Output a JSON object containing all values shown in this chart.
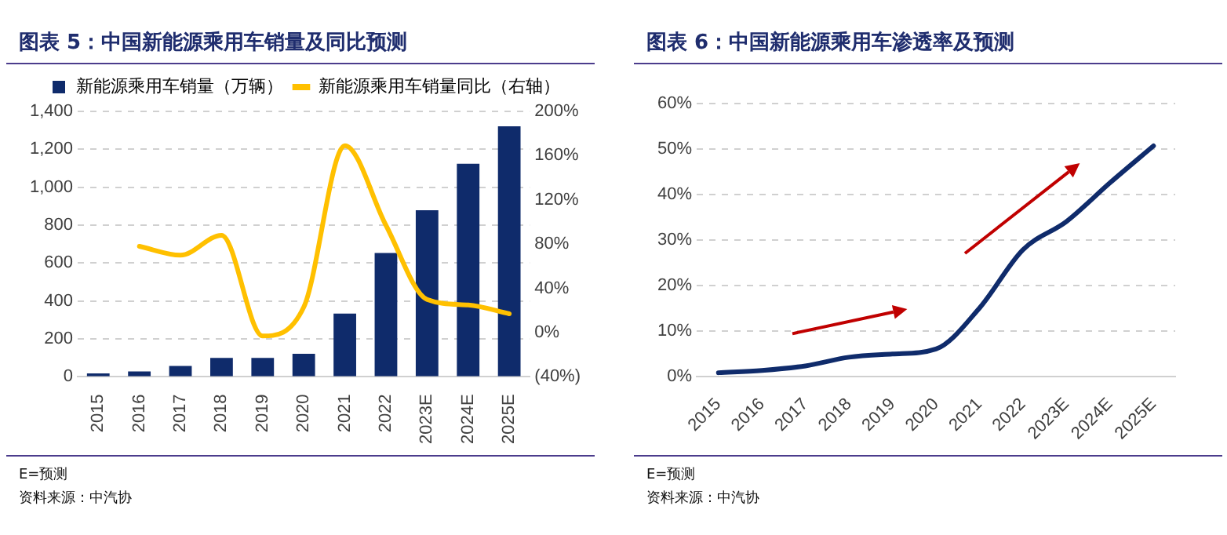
{
  "chart_data": [
    {
      "type": "bar",
      "title": "图表 5：中国新能源乘用车销量及同比预测",
      "categories": [
        "2015",
        "2016",
        "2017",
        "2018",
        "2019",
        "2020",
        "2021",
        "2022",
        "2023E",
        "2024E",
        "2025E"
      ],
      "series": [
        {
          "name": "新能源乘用车销量（万辆）",
          "color": "#0f2b6b",
          "values": [
            18,
            29,
            57,
            100,
            100,
            122,
            334,
            653,
            879,
            1124,
            1321
          ]
        },
        {
          "name": "新能源乘用车销量同比（右轴）",
          "type": "line",
          "axis": "y2",
          "color": "#ffc000",
          "values": [
            null,
            78,
            70,
            88,
            -3,
            23,
            169,
            97,
            30,
            25,
            17
          ]
        }
      ],
      "ylim": [
        0,
        1400
      ],
      "yticks": [
        {
          "value": 0,
          "label": "0"
        },
        {
          "value": 200,
          "label": "200"
        },
        {
          "value": 400,
          "label": "400"
        },
        {
          "value": 600,
          "label": "600"
        },
        {
          "value": 800,
          "label": "800"
        },
        {
          "value": 1000,
          "label": "1,000"
        },
        {
          "value": 1200,
          "label": "1,200"
        },
        {
          "value": 1400,
          "label": "1,400"
        }
      ],
      "y2lim": [
        -40,
        200
      ],
      "y2ticks": [
        {
          "value": -40,
          "label": "(40%)"
        },
        {
          "value": 0,
          "label": "0%"
        },
        {
          "value": 40,
          "label": "40%"
        },
        {
          "value": 80,
          "label": "80%"
        },
        {
          "value": 120,
          "label": "120%"
        },
        {
          "value": 160,
          "label": "160%"
        },
        {
          "value": 200,
          "label": "200%"
        }
      ],
      "grid": "y",
      "legend": "top",
      "marker": "none",
      "annotations": [
        "E=预测",
        "资料来源：中汽协"
      ]
    },
    {
      "type": "line",
      "title": "图表 6：中国新能源乘用车渗透率及预测",
      "categories": [
        "2015",
        "2016",
        "2017",
        "2018",
        "2019",
        "2020",
        "2021",
        "2022",
        "2023E",
        "2024E",
        "2025E"
      ],
      "series": [
        {
          "color": "#0f2b6b",
          "values": [
            0.9,
            1.4,
            2.4,
            4.3,
            5.0,
            6.1,
            15.1,
            27.9,
            34.1,
            42.6,
            50.7
          ]
        }
      ],
      "ylim": [
        0,
        60
      ],
      "yticks": [
        {
          "value": 0,
          "label": "0%"
        },
        {
          "value": 10,
          "label": "10%"
        },
        {
          "value": 20,
          "label": "20%"
        },
        {
          "value": 30,
          "label": "30%"
        },
        {
          "value": 40,
          "label": "40%"
        },
        {
          "value": 50,
          "label": "50%"
        },
        {
          "value": 60,
          "label": "60%"
        }
      ],
      "grid": "y",
      "legend": false,
      "marker": "none",
      "annotations": [
        "E=预测",
        "资料来源：中汽协"
      ]
    }
  ]
}
